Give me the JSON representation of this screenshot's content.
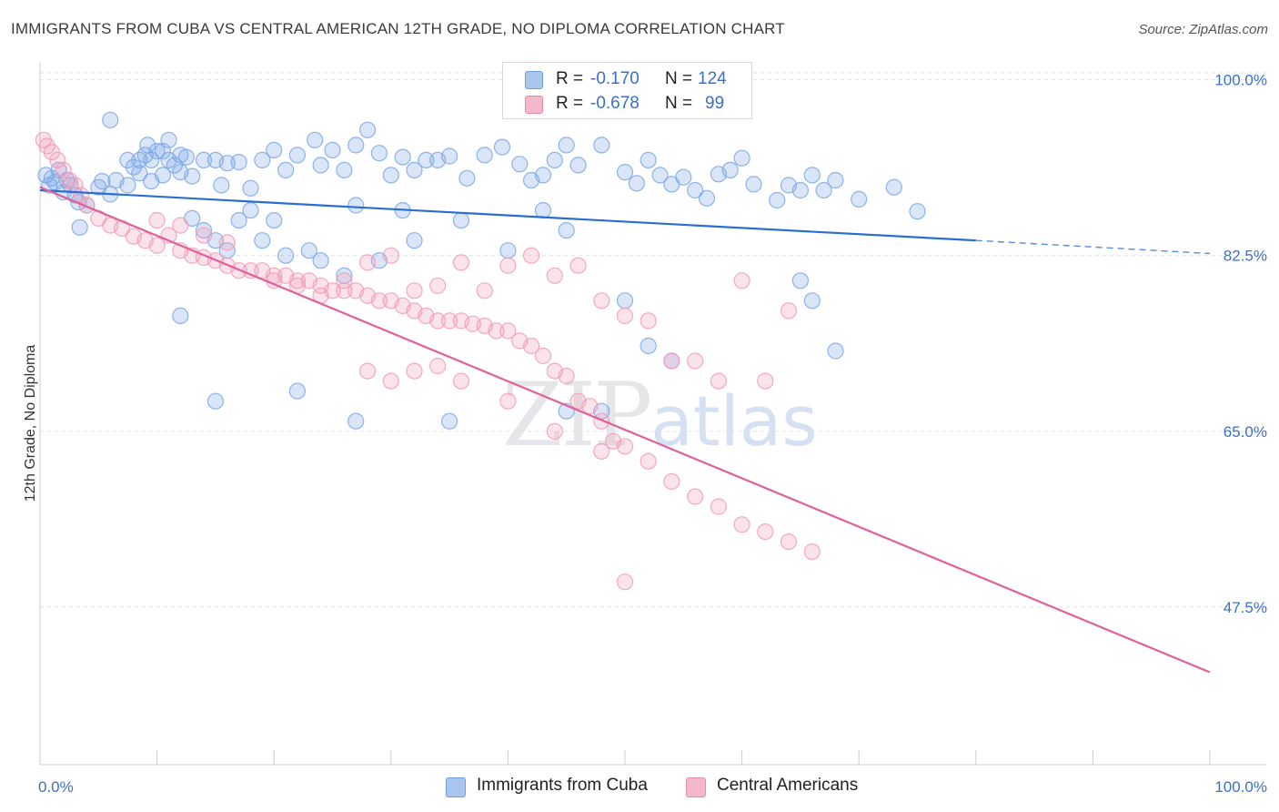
{
  "header": {
    "title": "IMMIGRANTS FROM CUBA VS CENTRAL AMERICAN 12TH GRADE, NO DIPLOMA CORRELATION CHART",
    "source": "Source: ZipAtlas.com"
  },
  "watermark": {
    "zip": "ZIP",
    "atlas": "atlas"
  },
  "legend": {
    "rows": [
      {
        "r_label": "R =",
        "r_value": "-0.170",
        "n_label": "N =",
        "n_value": "124",
        "color": "#a9c6ef"
      },
      {
        "r_label": "R =",
        "r_value": "-0.678",
        "n_label": "N =",
        "n_value": "99",
        "color": "#f5b8cb"
      }
    ]
  },
  "bottom_legend": {
    "items": [
      {
        "label": "Immigrants from Cuba",
        "color": "#a9c6ef"
      },
      {
        "label": "Central Americans",
        "color": "#f5b8cb"
      }
    ]
  },
  "chart_data": {
    "type": "scatter",
    "title": "IMMIGRANTS FROM CUBA VS CENTRAL AMERICAN 12TH GRADE, NO DIPLOMA CORRELATION CHART",
    "xlabel": "",
    "ylabel": "12th Grade, No Diploma",
    "xlim": [
      0,
      100
    ],
    "ylim": [
      31.8,
      101.6
    ],
    "x_tick_labels": [
      "0.0%",
      "100.0%"
    ],
    "y_ticks": [
      100.0,
      82.5,
      65.0,
      47.5
    ],
    "y_tick_labels": [
      "100.0%",
      "82.5%",
      "65.0%",
      "47.5%"
    ],
    "grid": true,
    "legend_position": "top-center",
    "series": [
      {
        "name": "Immigrants from Cuba",
        "color": "#7aa7e6",
        "line_color": "#2a6fd0",
        "trend": {
          "x0": 0,
          "y0": 89.0,
          "x1": 80,
          "y1": 84.0,
          "dashed_to_x": 100,
          "dashed_to_y": 82.7
        },
        "points": [
          [
            0.5,
            90.5
          ],
          [
            0.8,
            89.5
          ],
          [
            1,
            90.2
          ],
          [
            1.3,
            89.8
          ],
          [
            1.6,
            91
          ],
          [
            2,
            88.8
          ],
          [
            2.3,
            90
          ],
          [
            2.6,
            89.5
          ],
          [
            3,
            88.5
          ],
          [
            3.3,
            87.8
          ],
          [
            4,
            87.5
          ],
          [
            5,
            89.3
          ],
          [
            5.3,
            89.9
          ],
          [
            6,
            88.6
          ],
          [
            6.5,
            90
          ],
          [
            7.5,
            89.5
          ],
          [
            8,
            91.3
          ],
          [
            8.5,
            92
          ],
          [
            9,
            92.5
          ],
          [
            9.5,
            89.9
          ],
          [
            10,
            92.9
          ],
          [
            10.5,
            90.5
          ],
          [
            11,
            92
          ],
          [
            11.5,
            91.5
          ],
          [
            12,
            92.5
          ],
          [
            3.4,
            85.3
          ],
          [
            6,
            96
          ],
          [
            7.5,
            92
          ],
          [
            8.5,
            90.7
          ],
          [
            9.2,
            93.5
          ],
          [
            9.5,
            92
          ],
          [
            10.5,
            92.9
          ],
          [
            11,
            94
          ],
          [
            12,
            90.8
          ],
          [
            12.5,
            92.3
          ],
          [
            13,
            90.4
          ],
          [
            14,
            92
          ],
          [
            15,
            92
          ],
          [
            15.5,
            89.5
          ],
          [
            16,
            91.7
          ],
          [
            17,
            91.8
          ],
          [
            18,
            89.2
          ],
          [
            19,
            92
          ],
          [
            20,
            93
          ],
          [
            21,
            91
          ],
          [
            22,
            92.5
          ],
          [
            23.5,
            94
          ],
          [
            24,
            91.5
          ],
          [
            25,
            93
          ],
          [
            26,
            91
          ],
          [
            27,
            93.5
          ],
          [
            28,
            95
          ],
          [
            29,
            92.7
          ],
          [
            30,
            90.5
          ],
          [
            31,
            92.3
          ],
          [
            32,
            91
          ],
          [
            33,
            92
          ],
          [
            34,
            92
          ],
          [
            35,
            92.4
          ],
          [
            36.5,
            90.2
          ],
          [
            38,
            92.5
          ],
          [
            39.5,
            93.3
          ],
          [
            41,
            91.6
          ],
          [
            42,
            90
          ],
          [
            43,
            90.5
          ],
          [
            44,
            92
          ],
          [
            45,
            93.5
          ],
          [
            46,
            91.5
          ],
          [
            48,
            93.5
          ],
          [
            50,
            90.8
          ],
          [
            51,
            89.7
          ],
          [
            52,
            92
          ],
          [
            53,
            90.5
          ],
          [
            54,
            89.6
          ],
          [
            55,
            90.3
          ],
          [
            56,
            89
          ],
          [
            57,
            88.2
          ],
          [
            58,
            90.6
          ],
          [
            59,
            91
          ],
          [
            60,
            92.2
          ],
          [
            61,
            89.6
          ],
          [
            63,
            88
          ],
          [
            64,
            89.5
          ],
          [
            65,
            89
          ],
          [
            66,
            90.5
          ],
          [
            67,
            89
          ],
          [
            68,
            90
          ],
          [
            70,
            88.1
          ],
          [
            73,
            89.3
          ],
          [
            75,
            86.9
          ],
          [
            13,
            86.2
          ],
          [
            14,
            85
          ],
          [
            15,
            84
          ],
          [
            16,
            83
          ],
          [
            17,
            86
          ],
          [
            18,
            87
          ],
          [
            19,
            84
          ],
          [
            20,
            86
          ],
          [
            21,
            82.5
          ],
          [
            23,
            83
          ],
          [
            24,
            82
          ],
          [
            26,
            80.5
          ],
          [
            27,
            87.5
          ],
          [
            29,
            82
          ],
          [
            31,
            87
          ],
          [
            32,
            84
          ],
          [
            36,
            86
          ],
          [
            40,
            83
          ],
          [
            43,
            87
          ],
          [
            45,
            85
          ],
          [
            50,
            78
          ],
          [
            52,
            73.5
          ],
          [
            54,
            72
          ],
          [
            65,
            80
          ],
          [
            66,
            78
          ],
          [
            68,
            73
          ],
          [
            12,
            76.5
          ],
          [
            15,
            68
          ],
          [
            22,
            69
          ],
          [
            27,
            66
          ],
          [
            35,
            66
          ],
          [
            45,
            67
          ],
          [
            48,
            67
          ]
        ]
      },
      {
        "name": "Central Americans",
        "color": "#f29bb7",
        "line_color": "#e0609a",
        "trend": {
          "x0": 0,
          "y0": 89.3,
          "x1": 100,
          "y1": 41.0
        },
        "points": [
          [
            0.3,
            94
          ],
          [
            0.6,
            93.4
          ],
          [
            1,
            92.8
          ],
          [
            1.5,
            92
          ],
          [
            2,
            91
          ],
          [
            2.5,
            90
          ],
          [
            3,
            89.5
          ],
          [
            3.5,
            88.5
          ],
          [
            4,
            87.5
          ],
          [
            5,
            86.2
          ],
          [
            6,
            85.5
          ],
          [
            7,
            85.2
          ],
          [
            8,
            84.4
          ],
          [
            9,
            84
          ],
          [
            10,
            83.5
          ],
          [
            11,
            84.5
          ],
          [
            12,
            83
          ],
          [
            13,
            82.5
          ],
          [
            14,
            82.3
          ],
          [
            15,
            82
          ],
          [
            16,
            81.5
          ],
          [
            17,
            81
          ],
          [
            18,
            81
          ],
          [
            19,
            81
          ],
          [
            20,
            80.5
          ],
          [
            21,
            80.5
          ],
          [
            22,
            80
          ],
          [
            23,
            80
          ],
          [
            24,
            79.5
          ],
          [
            25,
            79
          ],
          [
            26,
            79
          ],
          [
            27,
            79
          ],
          [
            28,
            78.5
          ],
          [
            29,
            78
          ],
          [
            30,
            78
          ],
          [
            31,
            77.5
          ],
          [
            32,
            77
          ],
          [
            33,
            76.5
          ],
          [
            34,
            76
          ],
          [
            35,
            76
          ],
          [
            36,
            76
          ],
          [
            37,
            75.7
          ],
          [
            38,
            75.5
          ],
          [
            39,
            75
          ],
          [
            40,
            75
          ],
          [
            41,
            74
          ],
          [
            42,
            73.5
          ],
          [
            43,
            72.5
          ],
          [
            44,
            71
          ],
          [
            45,
            70.5
          ],
          [
            46,
            68
          ],
          [
            47,
            67.5
          ],
          [
            48,
            66
          ],
          [
            49,
            64
          ],
          [
            50,
            63.5
          ],
          [
            52,
            62
          ],
          [
            54,
            60
          ],
          [
            56,
            58.5
          ],
          [
            58,
            57.5
          ],
          [
            60,
            55.7
          ],
          [
            62,
            55
          ],
          [
            64,
            54
          ],
          [
            66,
            53
          ],
          [
            10,
            86
          ],
          [
            12,
            85.5
          ],
          [
            14,
            84.5
          ],
          [
            16,
            83.8
          ],
          [
            20,
            80
          ],
          [
            22,
            79.5
          ],
          [
            24,
            78.5
          ],
          [
            26,
            80
          ],
          [
            28,
            81.8
          ],
          [
            30,
            82.5
          ],
          [
            32,
            79
          ],
          [
            34,
            79.5
          ],
          [
            36,
            81.8
          ],
          [
            38,
            79
          ],
          [
            40,
            81.5
          ],
          [
            42,
            82.5
          ],
          [
            44,
            80.5
          ],
          [
            46,
            81.5
          ],
          [
            48,
            78
          ],
          [
            50,
            76.5
          ],
          [
            52,
            76
          ],
          [
            54,
            72
          ],
          [
            56,
            72
          ],
          [
            58,
            70
          ],
          [
            60,
            80
          ],
          [
            62,
            70
          ],
          [
            64,
            77
          ],
          [
            28,
            71
          ],
          [
            30,
            70
          ],
          [
            32,
            71
          ],
          [
            34,
            71.5
          ],
          [
            36,
            70
          ],
          [
            40,
            68
          ],
          [
            44,
            65
          ],
          [
            48,
            63
          ],
          [
            50,
            50
          ]
        ]
      }
    ]
  }
}
